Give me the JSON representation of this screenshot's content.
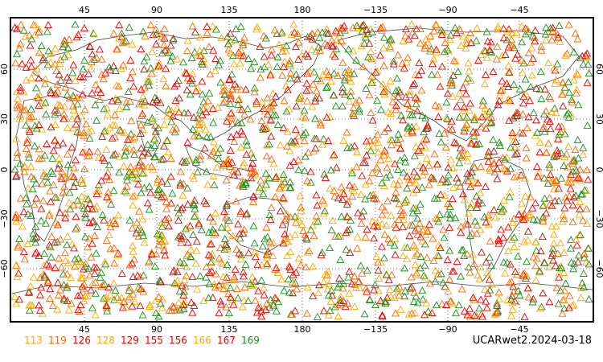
{
  "map": {
    "lon_ticks": [
      "45",
      "90",
      "135",
      "180",
      "−135",
      "−90",
      "−45"
    ],
    "lat_ticks": [
      "60",
      "30",
      "0",
      "−30",
      "−60"
    ],
    "marker_shape": "triangle-outline",
    "marker_colors": [
      "#e60000",
      "#ff6600",
      "#ffaa00",
      "#1a8f1a"
    ],
    "grid": "dotted"
  },
  "legend": {
    "items": [
      {
        "label": "113",
        "color": "#ffaa00"
      },
      {
        "label": "119",
        "color": "#ff6600"
      },
      {
        "label": "126",
        "color": "#e60000"
      },
      {
        "label": "128",
        "color": "#ffaa00"
      },
      {
        "label": "129",
        "color": "#e60000"
      },
      {
        "label": "155",
        "color": "#e60000"
      },
      {
        "label": "156",
        "color": "#e60000"
      },
      {
        "label": "166",
        "color": "#ffaa00"
      },
      {
        "label": "167",
        "color": "#e60000"
      },
      {
        "label": "169",
        "color": "#1a8f1a"
      }
    ]
  },
  "stamp": "UCARwet2.2024-03-18"
}
